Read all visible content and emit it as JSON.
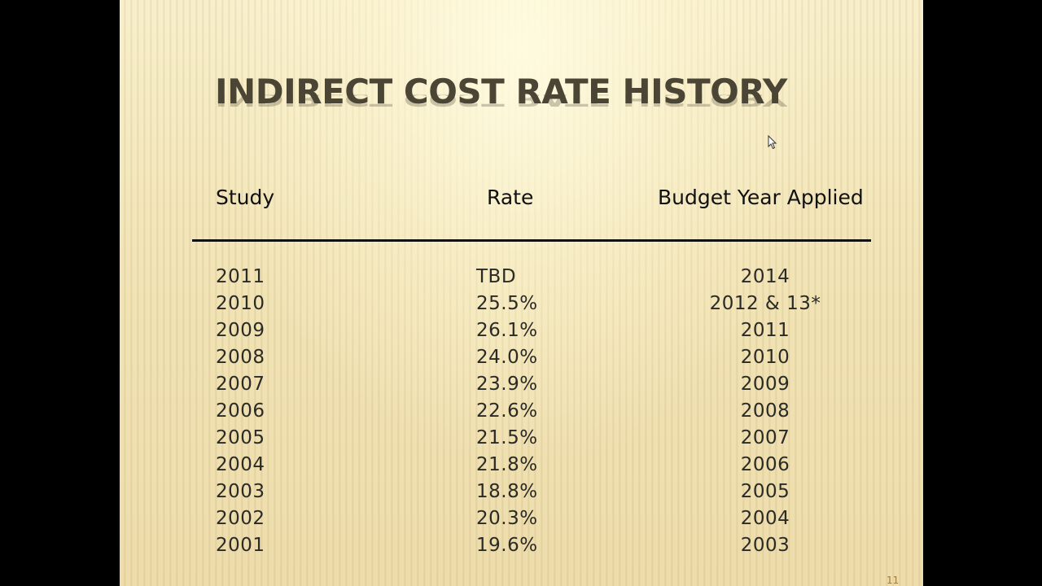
{
  "slide": {
    "title": "INDIRECT COST RATE HISTORY",
    "headers": {
      "study": "Study",
      "rate": "Rate",
      "budget_year": "Budget Year Applied"
    },
    "rows": [
      {
        "study": "2011",
        "rate": "TBD",
        "budget_year": "2014"
      },
      {
        "study": "2010",
        "rate": "25.5%",
        "budget_year": "2012 & 13*"
      },
      {
        "study": "2009",
        "rate": "26.1%",
        "budget_year": "2011"
      },
      {
        "study": "2008",
        "rate": "24.0%",
        "budget_year": "2010"
      },
      {
        "study": "2007",
        "rate": "23.9%",
        "budget_year": "2009"
      },
      {
        "study": "2006",
        "rate": "22.6%",
        "budget_year": "2008"
      },
      {
        "study": "2005",
        "rate": "21.5%",
        "budget_year": "2007"
      },
      {
        "study": "2004",
        "rate": "21.8%",
        "budget_year": "2006"
      },
      {
        "study": "2003",
        "rate": "18.8%",
        "budget_year": "2005"
      },
      {
        "study": "2002",
        "rate": "20.3%",
        "budget_year": "2004"
      },
      {
        "study": "2001",
        "rate": "19.6%",
        "budget_year": "2003"
      }
    ],
    "slide_number": "11"
  },
  "icons": {
    "cursor": "mouse-pointer-icon"
  }
}
